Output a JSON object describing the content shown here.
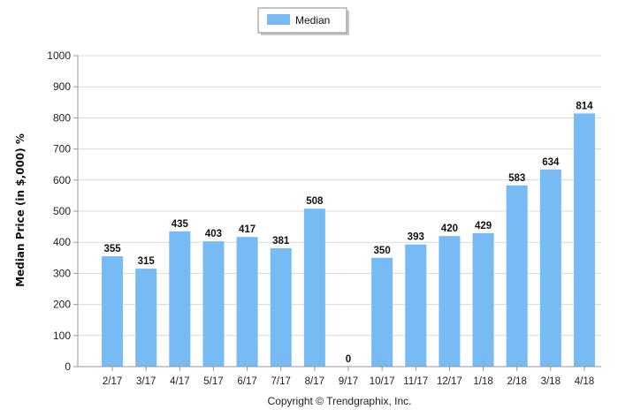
{
  "chart_data": {
    "type": "bar",
    "categories": [
      "2/17",
      "3/17",
      "4/17",
      "5/17",
      "6/17",
      "7/17",
      "8/17",
      "9/17",
      "10/17",
      "11/17",
      "12/17",
      "1/18",
      "2/18",
      "3/18",
      "4/18"
    ],
    "series": [
      {
        "name": "Median",
        "values": [
          355,
          315,
          435,
          403,
          417,
          381,
          508,
          0,
          350,
          393,
          420,
          429,
          583,
          634,
          814
        ]
      }
    ],
    "title": "",
    "xlabel": "",
    "ylabel": "Median Price (in $,000) %",
    "ylim": [
      0,
      1000
    ],
    "yticks": [
      0,
      100,
      200,
      300,
      400,
      500,
      600,
      700,
      800,
      900,
      1000
    ],
    "grid": true,
    "legend": "top-center",
    "bar_color": "#77bbf5"
  },
  "footer": {
    "copyright": "Copyright © Trendgraphix, Inc."
  }
}
